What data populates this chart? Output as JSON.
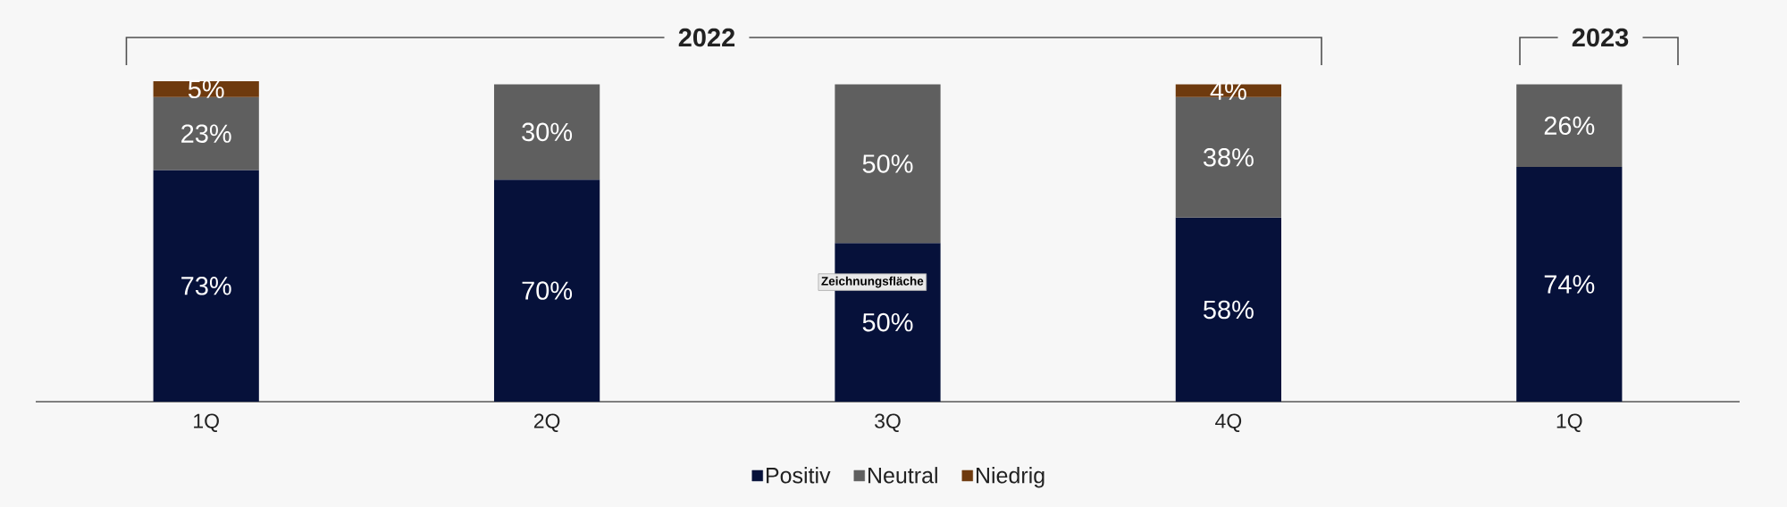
{
  "chart_data": {
    "type": "bar",
    "stacked": true,
    "categories": [
      "1Q",
      "2Q",
      "3Q",
      "4Q",
      "1Q"
    ],
    "series": [
      {
        "name": "Positiv",
        "color": "#06113a",
        "values": [
          73,
          70,
          50,
          58,
          74
        ],
        "value_labels": [
          "73%",
          "70%",
          "50%",
          "58%",
          "74%"
        ]
      },
      {
        "name": "Neutral",
        "color": "#5f5f5f",
        "values": [
          23,
          30,
          50,
          38,
          26
        ],
        "value_labels": [
          "23%",
          "30%",
          "50%",
          "38%",
          "26%"
        ]
      },
      {
        "name": "Niedrig",
        "color": "#6e3a0e",
        "values": [
          5,
          null,
          null,
          4,
          null
        ],
        "value_labels": [
          "5%",
          null,
          null,
          "4%",
          null
        ]
      }
    ],
    "legend": "bottom",
    "annotations": [
      "2022",
      "2023",
      "Zeichnungsfläche"
    ]
  }
}
